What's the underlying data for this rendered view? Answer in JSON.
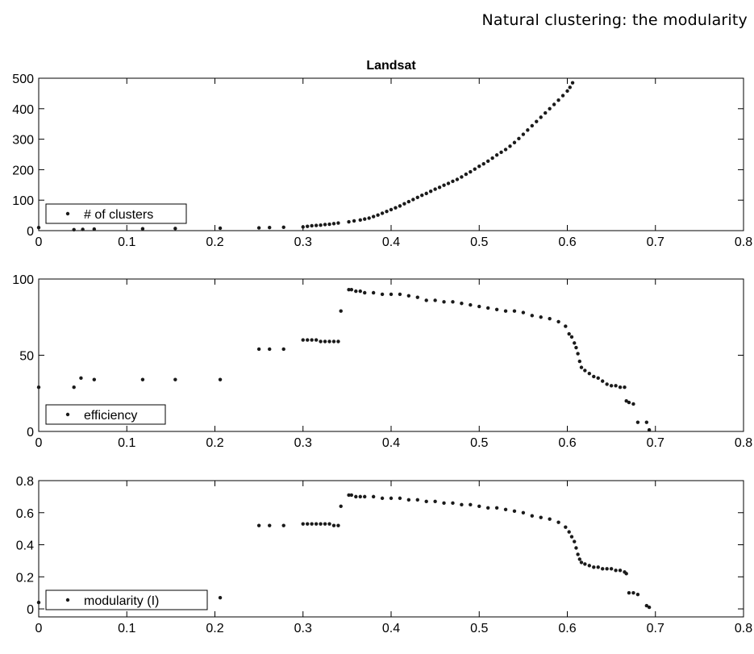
{
  "page_header": "Natural clustering: the modularity",
  "chart_data": [
    {
      "type": "scatter",
      "title": "Landsat",
      "xlabel": "",
      "ylabel": "",
      "xlim": [
        0,
        0.8
      ],
      "ylim": [
        0,
        500
      ],
      "xticks": [
        "0",
        "0.1",
        "0.2",
        "0.3",
        "0.4",
        "0.5",
        "0.6",
        "0.7",
        "0.8"
      ],
      "yticks": [
        "0",
        "100",
        "200",
        "300",
        "400",
        "500"
      ],
      "grid": false,
      "legend_position": "bottom-left",
      "series": [
        {
          "name": "# of clusters",
          "color": "#1a1a1a",
          "x": [
            0.0,
            0.04,
            0.05,
            0.063,
            0.118,
            0.155,
            0.206,
            0.25,
            0.262,
            0.278,
            0.3,
            0.305,
            0.31,
            0.315,
            0.32,
            0.325,
            0.33,
            0.335,
            0.34,
            0.352,
            0.358,
            0.365,
            0.37,
            0.375,
            0.38,
            0.385,
            0.39,
            0.395,
            0.4,
            0.405,
            0.41,
            0.415,
            0.42,
            0.425,
            0.43,
            0.435,
            0.44,
            0.445,
            0.45,
            0.455,
            0.46,
            0.465,
            0.47,
            0.475,
            0.48,
            0.485,
            0.49,
            0.495,
            0.5,
            0.505,
            0.51,
            0.515,
            0.52,
            0.525,
            0.53,
            0.535,
            0.54,
            0.545,
            0.55,
            0.555,
            0.56,
            0.565,
            0.57,
            0.575,
            0.58,
            0.585,
            0.59,
            0.595,
            0.6,
            0.603,
            0.606
          ],
          "y": [
            10,
            3,
            4,
            5,
            6,
            7,
            8,
            9,
            10,
            11,
            12,
            14,
            16,
            17,
            18,
            20,
            21,
            23,
            25,
            29,
            32,
            35,
            38,
            41,
            46,
            51,
            57,
            63,
            69,
            75,
            81,
            88,
            95,
            102,
            109,
            116,
            122,
            129,
            136,
            142,
            149,
            155,
            162,
            168,
            176,
            185,
            193,
            202,
            211,
            219,
            228,
            238,
            248,
            257,
            266,
            277,
            289,
            302,
            316,
            330,
            344,
            358,
            372,
            386,
            400,
            414,
            428,
            443,
            458,
            470,
            485
          ]
        }
      ]
    },
    {
      "type": "scatter",
      "title": "",
      "xlabel": "",
      "ylabel": "",
      "xlim": [
        0,
        0.8
      ],
      "ylim": [
        0,
        100
      ],
      "xticks": [
        "0",
        "0.1",
        "0.2",
        "0.3",
        "0.4",
        "0.5",
        "0.6",
        "0.7",
        "0.8"
      ],
      "yticks": [
        "0",
        "50",
        "100"
      ],
      "grid": false,
      "legend_position": "bottom-left",
      "series": [
        {
          "name": "efficiency",
          "color": "#1a1a1a",
          "x": [
            0.0,
            0.04,
            0.048,
            0.063,
            0.118,
            0.155,
            0.206,
            0.25,
            0.262,
            0.278,
            0.3,
            0.305,
            0.31,
            0.315,
            0.32,
            0.325,
            0.33,
            0.335,
            0.34,
            0.343,
            0.352,
            0.355,
            0.36,
            0.365,
            0.37,
            0.38,
            0.39,
            0.4,
            0.41,
            0.42,
            0.43,
            0.44,
            0.45,
            0.46,
            0.47,
            0.48,
            0.49,
            0.5,
            0.51,
            0.52,
            0.53,
            0.54,
            0.55,
            0.56,
            0.57,
            0.58,
            0.59,
            0.598,
            0.602,
            0.605,
            0.608,
            0.61,
            0.612,
            0.614,
            0.616,
            0.62,
            0.625,
            0.63,
            0.635,
            0.64,
            0.645,
            0.65,
            0.655,
            0.66,
            0.665,
            0.667,
            0.67,
            0.675,
            0.68,
            0.69,
            0.693
          ],
          "y": [
            29,
            29,
            35,
            34,
            34,
            34,
            34,
            54,
            54,
            54,
            60,
            60,
            60,
            60,
            59,
            59,
            59,
            59,
            59,
            79,
            93,
            93,
            92,
            92,
            91,
            91,
            90,
            90,
            90,
            89,
            88,
            86,
            86,
            85,
            85,
            84,
            83,
            82,
            81,
            80,
            79,
            79,
            78,
            76,
            75,
            74,
            72,
            69,
            64,
            62,
            58,
            55,
            51,
            46,
            42,
            40,
            38,
            36,
            35,
            33,
            31,
            30,
            30,
            29,
            29,
            20,
            19,
            18,
            6,
            6,
            1
          ]
        }
      ]
    },
    {
      "type": "scatter",
      "title": "",
      "xlabel": "",
      "ylabel": "",
      "xlim": [
        0,
        0.8
      ],
      "ylim": [
        -0.05,
        0.8
      ],
      "xticks": [
        "0",
        "0.1",
        "0.2",
        "0.3",
        "0.4",
        "0.5",
        "0.6",
        "0.7",
        "0.8"
      ],
      "yticks": [
        "0",
        "0.2",
        "0.4",
        "0.6",
        "0.8"
      ],
      "grid": false,
      "legend_position": "bottom-left",
      "series": [
        {
          "name": "modularity (I)",
          "color": "#1a1a1a",
          "x": [
            0.0,
            0.04,
            0.048,
            0.063,
            0.118,
            0.155,
            0.206,
            0.25,
            0.262,
            0.278,
            0.3,
            0.305,
            0.31,
            0.315,
            0.32,
            0.325,
            0.33,
            0.335,
            0.34,
            0.343,
            0.352,
            0.355,
            0.36,
            0.365,
            0.37,
            0.38,
            0.39,
            0.4,
            0.41,
            0.42,
            0.43,
            0.44,
            0.45,
            0.46,
            0.47,
            0.48,
            0.49,
            0.5,
            0.51,
            0.52,
            0.53,
            0.54,
            0.55,
            0.56,
            0.57,
            0.58,
            0.59,
            0.598,
            0.602,
            0.605,
            0.608,
            0.61,
            0.612,
            0.614,
            0.616,
            0.62,
            0.625,
            0.63,
            0.635,
            0.64,
            0.645,
            0.65,
            0.655,
            0.66,
            0.665,
            0.667,
            0.67,
            0.675,
            0.68,
            0.69,
            0.693
          ],
          "y": [
            0.04,
            0.07,
            0.07,
            0.07,
            0.07,
            0.07,
            0.07,
            0.52,
            0.52,
            0.52,
            0.53,
            0.53,
            0.53,
            0.53,
            0.53,
            0.53,
            0.53,
            0.52,
            0.52,
            0.64,
            0.71,
            0.71,
            0.7,
            0.7,
            0.7,
            0.7,
            0.69,
            0.69,
            0.69,
            0.68,
            0.68,
            0.67,
            0.67,
            0.66,
            0.66,
            0.65,
            0.65,
            0.64,
            0.63,
            0.63,
            0.62,
            0.61,
            0.6,
            0.58,
            0.57,
            0.56,
            0.54,
            0.51,
            0.48,
            0.45,
            0.42,
            0.38,
            0.34,
            0.31,
            0.29,
            0.28,
            0.27,
            0.26,
            0.26,
            0.25,
            0.25,
            0.25,
            0.24,
            0.24,
            0.23,
            0.22,
            0.1,
            0.1,
            0.09,
            0.02,
            0.01
          ]
        }
      ]
    }
  ]
}
